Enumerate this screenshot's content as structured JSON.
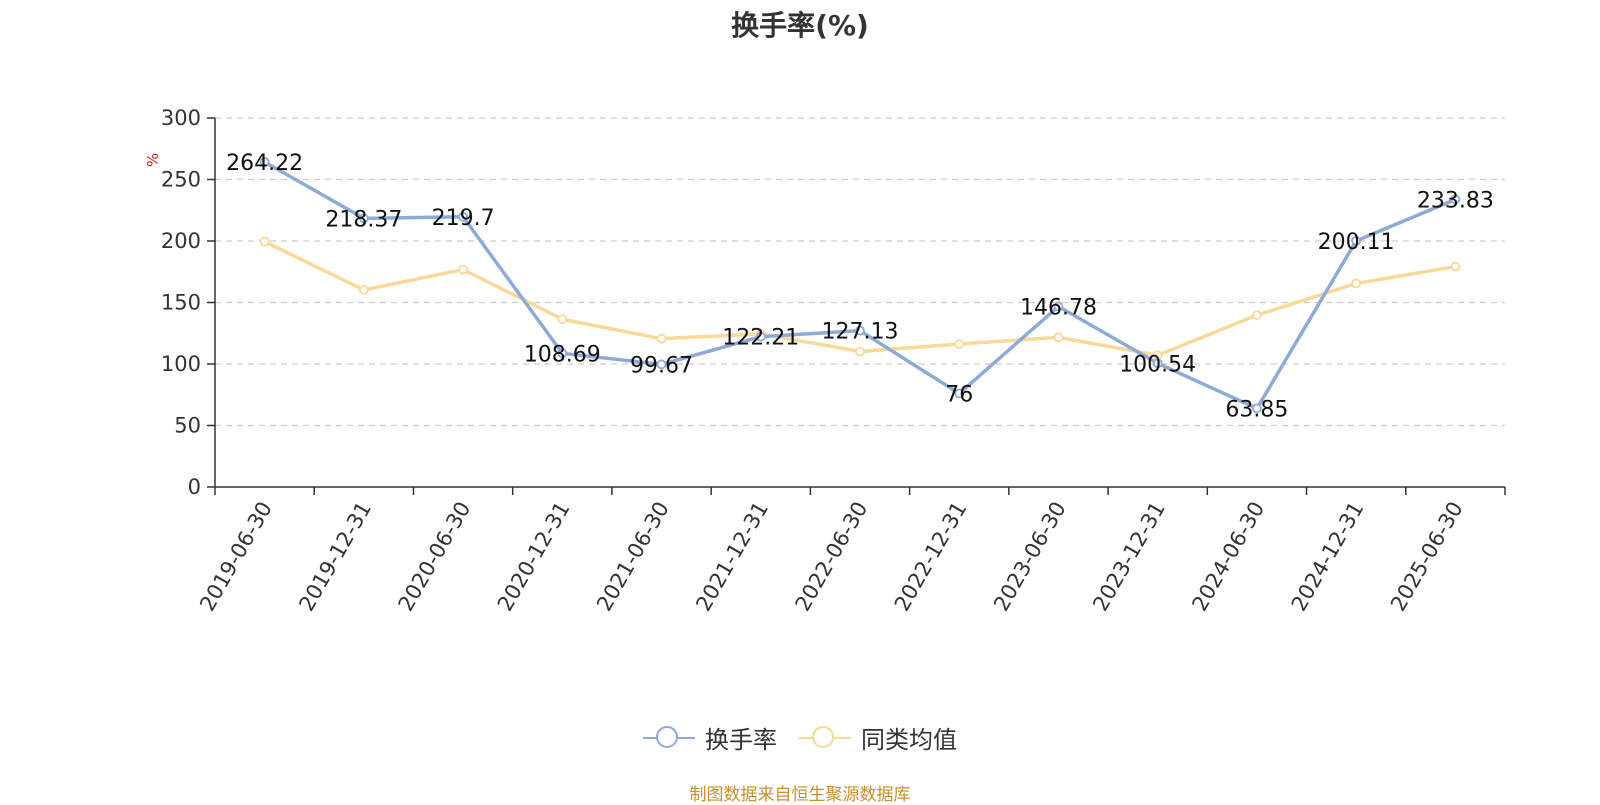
{
  "chart_data": {
    "type": "line",
    "title": "换手率(%)",
    "ylabel": "%",
    "ylim": [
      0,
      300
    ],
    "yticks": [
      0,
      50,
      100,
      150,
      200,
      250,
      300
    ],
    "grid": true,
    "legend_position": "bottom-center",
    "categories": [
      "2019-06-30",
      "2019-12-31",
      "2020-06-30",
      "2020-12-31",
      "2021-06-30",
      "2021-12-31",
      "2022-06-30",
      "2022-12-31",
      "2023-06-30",
      "2023-12-31",
      "2024-06-30",
      "2024-12-31",
      "2025-06-30"
    ],
    "series": [
      {
        "name": "换手率",
        "color": "#8eaad6",
        "values": [
          264.22,
          218.37,
          219.7,
          108.69,
          99.67,
          122.21,
          127.13,
          76,
          146.78,
          100.54,
          63.85,
          200.11,
          233.83
        ],
        "labels": [
          "264.22",
          "218.37",
          "219.7",
          "108.69",
          "99.67",
          "122.21",
          "127.13",
          "76",
          "146.78",
          "100.54",
          "63.85",
          "200.11",
          "233.83"
        ]
      },
      {
        "name": "同类均值",
        "color": "#f9d898",
        "values": [
          199.5,
          160.2,
          176.8,
          136.4,
          120.6,
          124.5,
          110.2,
          116.3,
          121.7,
          107.0,
          139.7,
          165.5,
          179.2
        ]
      }
    ]
  },
  "source": "制图数据来自恒生聚源数据库"
}
